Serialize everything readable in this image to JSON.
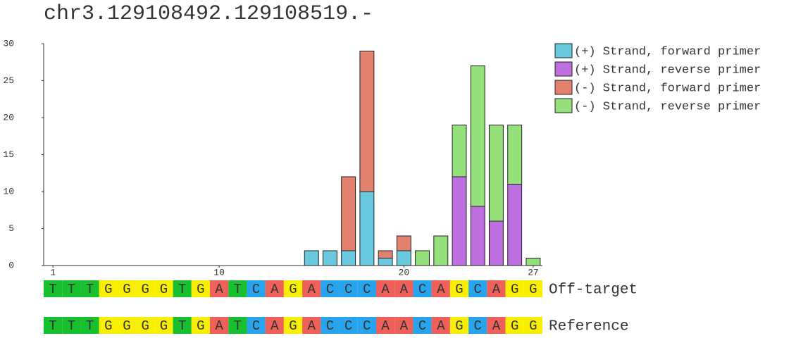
{
  "chart_data": {
    "type": "stacked-bar",
    "title": "chr3.129108492.129108519.-",
    "x": [
      1,
      2,
      3,
      4,
      5,
      6,
      7,
      8,
      9,
      10,
      11,
      12,
      13,
      14,
      15,
      16,
      17,
      18,
      19,
      20,
      21,
      22,
      23,
      24,
      25,
      26,
      27
    ],
    "xlim": [
      0.5,
      27.5
    ],
    "xticks": [
      1,
      10,
      20,
      27
    ],
    "ylim": [
      0,
      30
    ],
    "yticks": [
      0,
      5,
      10,
      15,
      20,
      25,
      30
    ],
    "legend": "right",
    "series": [
      {
        "name": "(+) Strand, forward primer",
        "color": "#6ac9de",
        "values": [
          0,
          0,
          0,
          0,
          0,
          0,
          0,
          0,
          0,
          0,
          0,
          0,
          0,
          0,
          2,
          2,
          2,
          10,
          1,
          2,
          0,
          0,
          0,
          0,
          0,
          0,
          0
        ]
      },
      {
        "name": "(+) Strand, reverse primer",
        "color": "#bd6fe0",
        "values": [
          0,
          0,
          0,
          0,
          0,
          0,
          0,
          0,
          0,
          0,
          0,
          0,
          0,
          0,
          0,
          0,
          0,
          0,
          0,
          0,
          0,
          0,
          12,
          8,
          6,
          11,
          0
        ]
      },
      {
        "name": "(-) Strand, forward primer",
        "color": "#e2826e",
        "values": [
          0,
          0,
          0,
          0,
          0,
          0,
          0,
          0,
          0,
          0,
          0,
          0,
          0,
          0,
          0,
          0,
          10,
          19,
          1,
          2,
          0,
          0,
          0,
          0,
          0,
          0,
          0
        ]
      },
      {
        "name": "(-) Strand, reverse primer",
        "color": "#94e07a",
        "values": [
          0,
          0,
          0,
          0,
          0,
          0,
          0,
          0,
          0,
          0,
          0,
          0,
          0,
          0,
          0,
          0,
          0,
          0,
          0,
          0,
          2,
          4,
          7,
          19,
          13,
          8,
          1
        ]
      }
    ],
    "sequences": [
      {
        "label": "Off-target",
        "bases": [
          "T",
          "T",
          "T",
          "G",
          "G",
          "G",
          "G",
          "T",
          "G",
          "A",
          "T",
          "C",
          "A",
          "G",
          "A",
          "C",
          "C",
          "C",
          "A",
          "A",
          "C",
          "A",
          "G",
          "C",
          "A",
          "G",
          "G"
        ]
      },
      {
        "label": "Reference",
        "bases": [
          "T",
          "T",
          "T",
          "G",
          "G",
          "G",
          "G",
          "T",
          "G",
          "A",
          "T",
          "C",
          "A",
          "G",
          "A",
          "C",
          "C",
          "C",
          "A",
          "A",
          "C",
          "A",
          "G",
          "C",
          "A",
          "G",
          "G"
        ]
      }
    ],
    "base_colors": {
      "A": "#f0605a",
      "C": "#28a4ee",
      "G": "#f8f000",
      "T": "#18c030"
    }
  }
}
